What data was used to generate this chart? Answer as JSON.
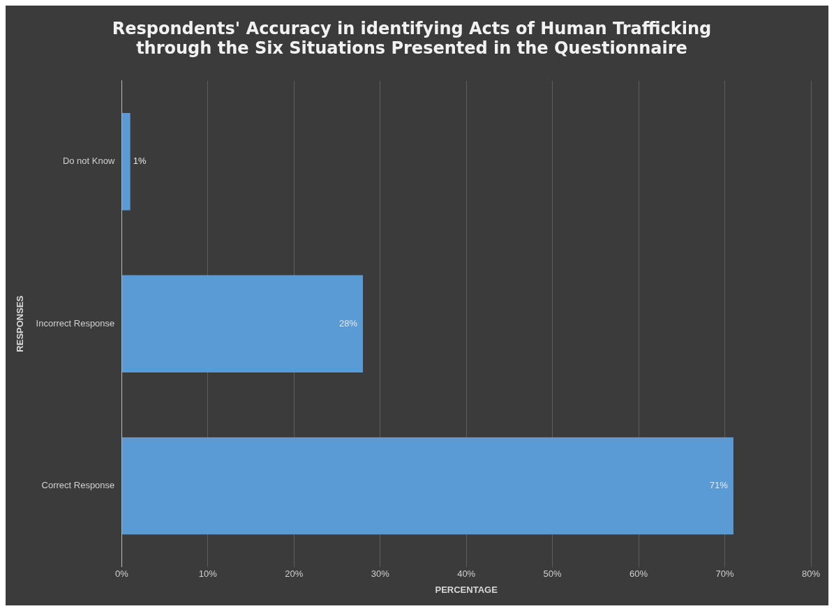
{
  "chart_data": {
    "type": "bar",
    "orientation": "horizontal",
    "title": [
      "Respondents' Accuracy in identifying Acts of Human Trafficking",
      "through the Six Situations Presented in the Questionnaire"
    ],
    "xlabel": "PERCENTAGE",
    "ylabel": "RESPONSES",
    "categories": [
      "Do not Know",
      "Incorrect Response",
      "Correct Response"
    ],
    "values": [
      1,
      28,
      71
    ],
    "value_labels": [
      "1%",
      "28%",
      "71%"
    ],
    "color": "#5b9bd5",
    "xlim": [
      0,
      80
    ],
    "xticks": [
      {
        "value": 0,
        "label": "0%"
      },
      {
        "value": 10,
        "label": "10%"
      },
      {
        "value": 20,
        "label": "20%"
      },
      {
        "value": 30,
        "label": "30%"
      },
      {
        "value": 40,
        "label": "40%"
      },
      {
        "value": 50,
        "label": "50%"
      },
      {
        "value": 60,
        "label": "60%"
      },
      {
        "value": 70,
        "label": "70%"
      },
      {
        "value": 80,
        "label": "80%"
      }
    ],
    "grid": "x",
    "legend": false
  }
}
